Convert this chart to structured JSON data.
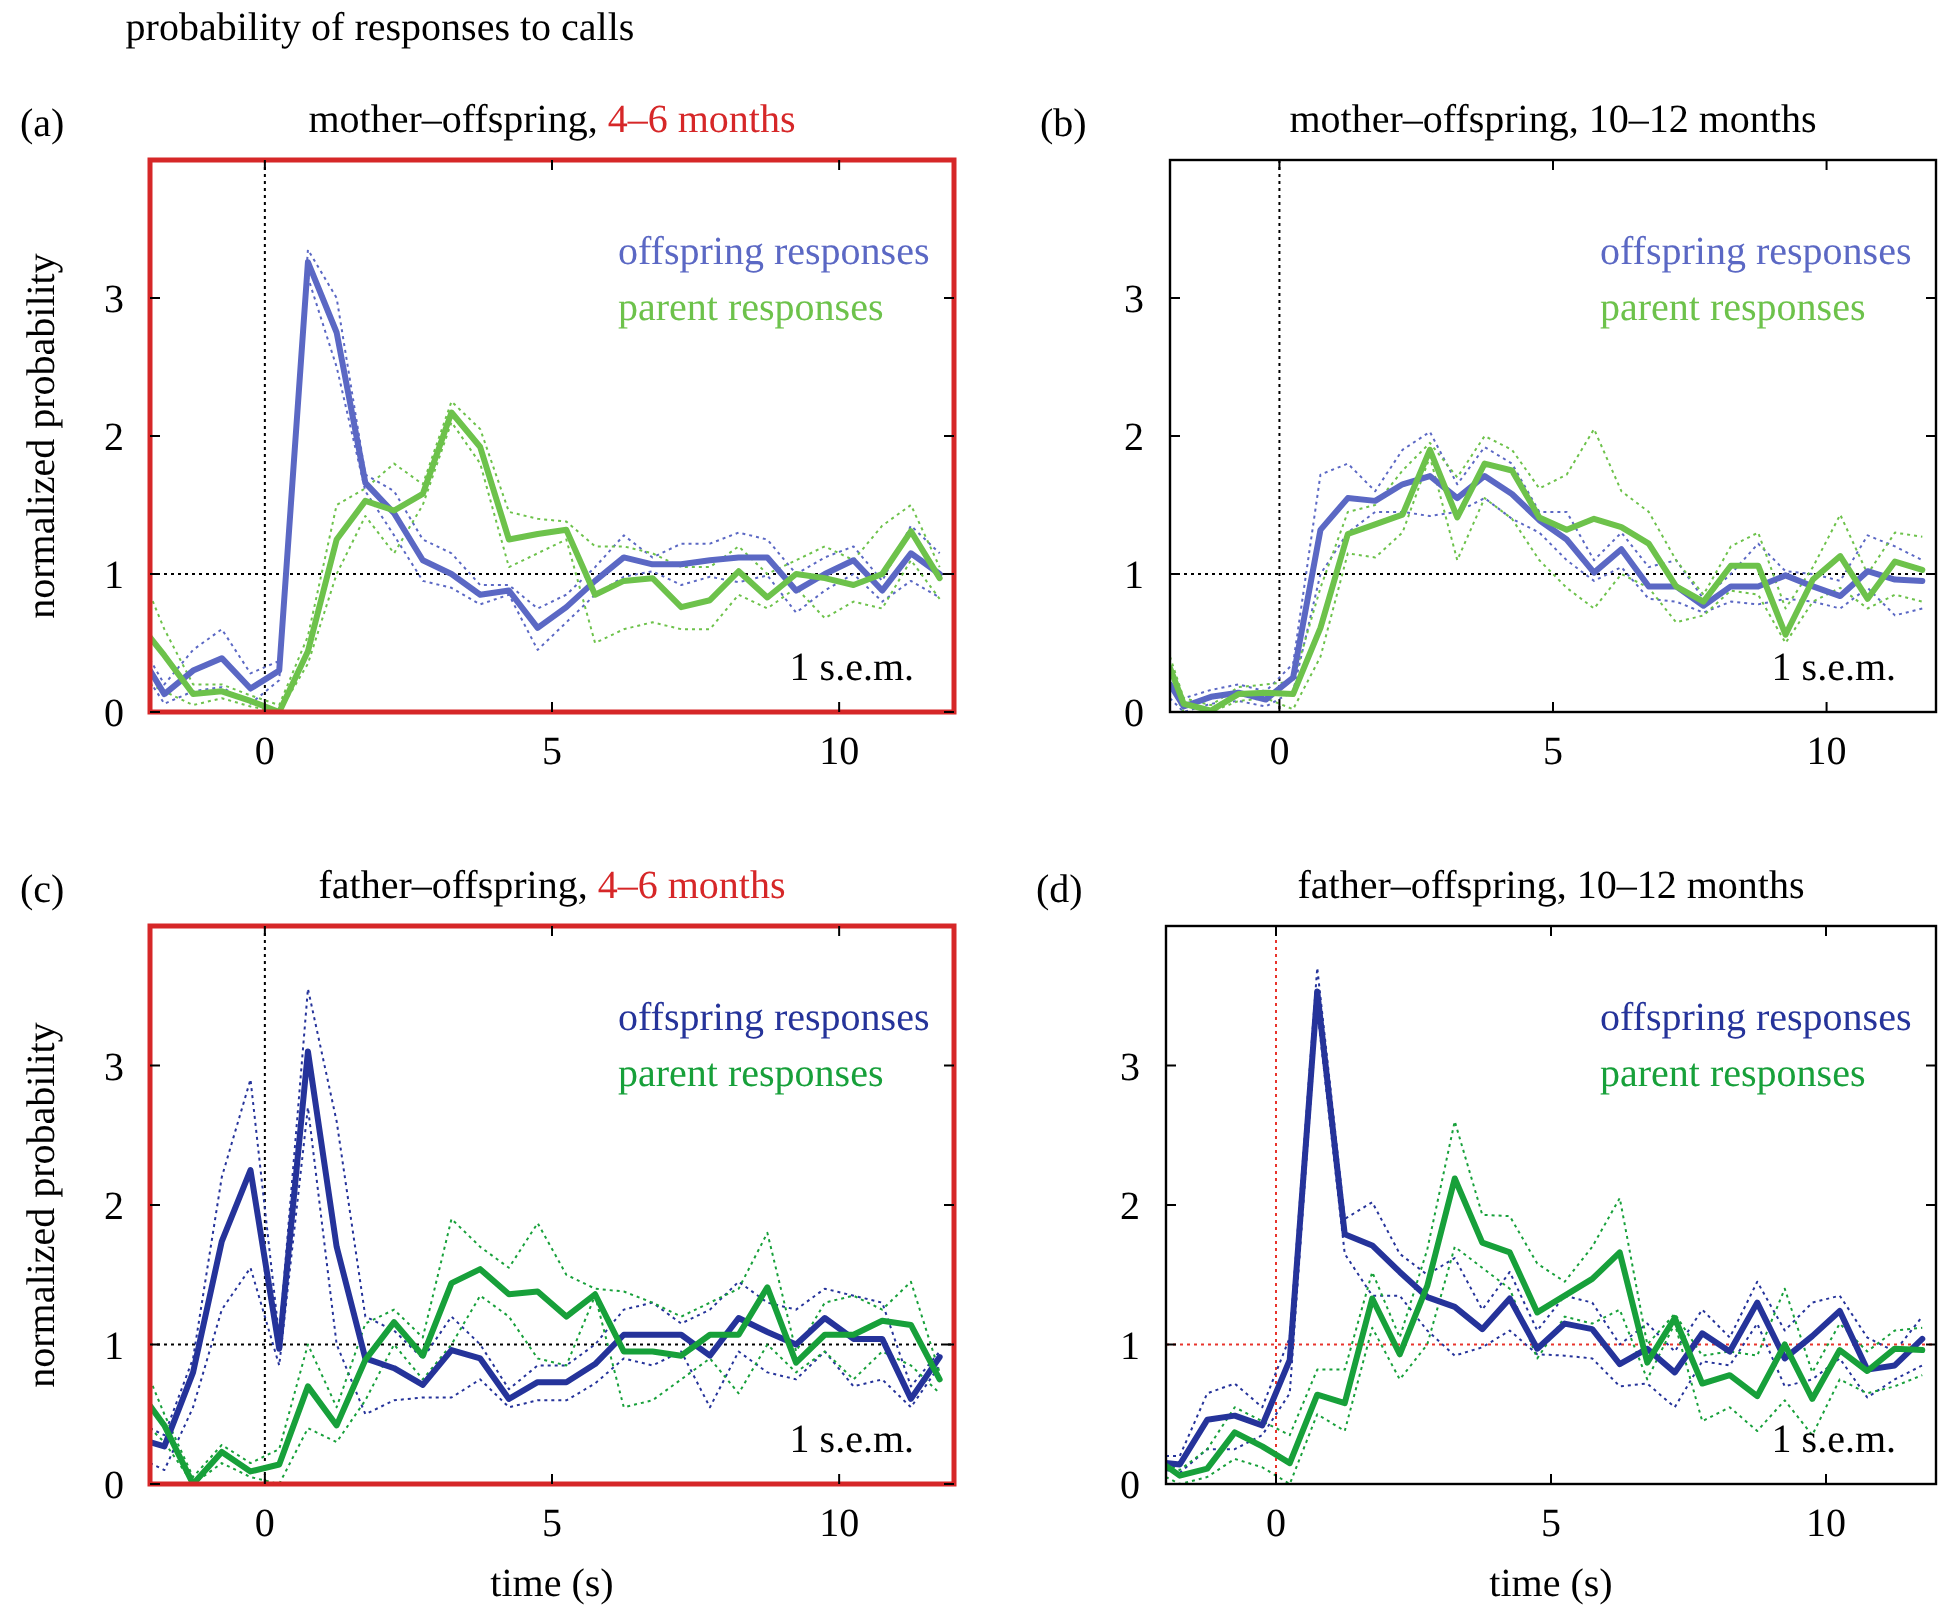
{
  "chart_data": [
    {
      "type": "line",
      "title": "probability of responses to calls",
      "subtitle": "mother–offspring, 4–6 months",
      "ylabel": "normalized probability",
      "annotations": [
        "(a)",
        "1 s.e.m."
      ],
      "legend": "top right",
      "xlim": [
        -2,
        12
      ],
      "ylim": [
        0,
        4
      ],
      "xticks": [
        0,
        5,
        10
      ],
      "yticks": [
        0,
        1,
        2,
        3
      ],
      "x": [
        -2,
        -1.75,
        -1.25,
        -0.75,
        -0.25,
        0.25,
        0.75,
        1.25,
        1.75,
        2.25,
        2.75,
        3.25,
        3.75,
        4.25,
        4.75,
        5.25,
        5.75,
        6.25,
        6.75,
        7.25,
        7.75,
        8.25,
        8.75,
        9.25,
        9.75,
        10.25,
        10.75,
        11.25,
        11.75
      ],
      "ref_lines": [
        {
          "axis": "x",
          "value": 0,
          "color": "#000000",
          "line_style": "dotted"
        },
        {
          "axis": "y",
          "value": 1,
          "color": "#000000",
          "line_style": "dotted"
        }
      ],
      "series": [
        {
          "color": "#5b68c4",
          "line_style": "dotted",
          "values": [
            0.22,
            0.06,
            0.15,
            0.18,
            0.06,
            0.23,
            3.15,
            2.5,
            1.6,
            1.28,
            0.95,
            0.9,
            0.78,
            0.85,
            0.45,
            0.65,
            0.85,
            0.98,
            1.02,
            0.92,
            0.98,
            0.94,
            0.99,
            0.72,
            0.88,
            1.0,
            0.8,
            0.95,
            0.83
          ]
        },
        {
          "color": "#5b68c4",
          "line_style": "dotted",
          "values": [
            0.38,
            0.2,
            0.45,
            0.6,
            0.28,
            0.37,
            3.35,
            3.0,
            1.72,
            1.6,
            1.25,
            1.15,
            0.92,
            0.92,
            0.75,
            0.85,
            1.05,
            1.28,
            1.12,
            1.22,
            1.22,
            1.3,
            1.25,
            1.0,
            1.12,
            1.2,
            0.95,
            1.35,
            1.15
          ]
        },
        {
          "color": "#6dc24b",
          "line_style": "dotted",
          "values": [
            0.2,
            0.15,
            0.05,
            0.1,
            0.04,
            0.0,
            0.35,
            1.0,
            1.42,
            1.15,
            1.5,
            2.1,
            1.8,
            1.05,
            1.15,
            1.25,
            0.5,
            0.6,
            0.65,
            0.6,
            0.6,
            0.85,
            0.75,
            0.9,
            0.68,
            0.8,
            0.75,
            1.1,
            0.82
          ]
        },
        {
          "color": "#6dc24b",
          "line_style": "dotted",
          "values": [
            0.85,
            0.6,
            0.2,
            0.2,
            0.12,
            0.05,
            0.55,
            1.5,
            1.62,
            1.8,
            1.65,
            2.25,
            2.05,
            1.45,
            1.4,
            1.38,
            1.2,
            1.2,
            1.15,
            1.05,
            1.05,
            1.2,
            1.0,
            1.1,
            1.2,
            1.1,
            1.35,
            1.5,
            1.05
          ]
        },
        {
          "name": "offspring responses",
          "color": "#5b68c4",
          "line_style": "solid",
          "values": [
            0.3,
            0.13,
            0.3,
            0.39,
            0.17,
            0.3,
            3.26,
            2.75,
            1.66,
            1.44,
            1.1,
            1.0,
            0.85,
            0.88,
            0.61,
            0.76,
            0.95,
            1.12,
            1.07,
            1.07,
            1.1,
            1.12,
            1.12,
            0.88,
            1.0,
            1.1,
            0.88,
            1.15,
            1.0
          ]
        },
        {
          "name": "parent responses",
          "color": "#6dc24b",
          "line_style": "solid",
          "values": [
            0.54,
            0.41,
            0.13,
            0.15,
            0.08,
            0.0,
            0.44,
            1.25,
            1.53,
            1.46,
            1.58,
            2.17,
            1.92,
            1.25,
            1.29,
            1.32,
            0.85,
            0.95,
            0.97,
            0.76,
            0.81,
            1.02,
            0.83,
            1.0,
            0.97,
            0.92,
            1.0,
            1.31,
            0.97
          ]
        }
      ]
    },
    {
      "type": "line",
      "title": "mother–offspring, 10–12 months",
      "annotations": [
        "(b)",
        "1 s.e.m."
      ],
      "legend": "top right",
      "xlim": [
        -2,
        12
      ],
      "ylim": [
        0,
        4
      ],
      "xticks": [
        0,
        5,
        10
      ],
      "yticks": [
        0,
        1,
        2,
        3
      ],
      "x": [
        -2,
        -1.75,
        -1.25,
        -0.75,
        -0.25,
        0.25,
        0.75,
        1.25,
        1.75,
        2.25,
        2.75,
        3.25,
        3.75,
        4.25,
        4.75,
        5.25,
        5.75,
        6.25,
        6.75,
        7.25,
        7.75,
        8.25,
        8.75,
        9.25,
        9.75,
        10.25,
        10.75,
        11.25,
        11.75
      ],
      "ref_lines": [
        {
          "axis": "x",
          "value": 0,
          "color": "#000000",
          "line_style": "dotted"
        },
        {
          "axis": "y",
          "value": 1,
          "color": "#000000",
          "line_style": "dotted"
        }
      ],
      "series": [
        {
          "color": "#5b68c4",
          "line_style": "dotted",
          "values": [
            0.1,
            0.0,
            0.06,
            0.08,
            0.04,
            0.15,
            1.0,
            1.3,
            1.45,
            1.45,
            1.42,
            1.45,
            1.55,
            1.4,
            1.3,
            1.1,
            0.95,
            1.05,
            0.82,
            0.8,
            0.72,
            0.8,
            0.78,
            0.82,
            0.8,
            0.75,
            0.9,
            0.7,
            0.75
          ]
        },
        {
          "color": "#5b68c4",
          "line_style": "dotted",
          "values": [
            0.3,
            0.1,
            0.16,
            0.2,
            0.15,
            0.35,
            1.72,
            1.8,
            1.6,
            1.9,
            2.03,
            1.65,
            1.92,
            1.8,
            1.45,
            1.45,
            1.1,
            1.3,
            1.05,
            1.1,
            0.82,
            1.0,
            1.22,
            1.02,
            1.0,
            0.95,
            1.28,
            1.2,
            1.1
          ]
        },
        {
          "color": "#6dc24b",
          "line_style": "dotted",
          "values": [
            0.2,
            0.0,
            0.0,
            0.08,
            0.1,
            0.02,
            0.4,
            1.15,
            1.12,
            1.3,
            1.85,
            1.1,
            1.55,
            1.4,
            1.1,
            0.9,
            0.75,
            1.0,
            0.9,
            0.65,
            0.7,
            0.88,
            0.85,
            0.5,
            0.8,
            0.9,
            0.75,
            0.85,
            0.8
          ]
        },
        {
          "color": "#6dc24b",
          "line_style": "dotted",
          "values": [
            0.4,
            0.1,
            0.05,
            0.18,
            0.2,
            0.22,
            0.9,
            1.45,
            1.5,
            1.75,
            1.95,
            1.7,
            2.0,
            1.9,
            1.62,
            1.72,
            2.05,
            1.6,
            1.45,
            1.1,
            0.85,
            1.2,
            1.3,
            0.75,
            1.05,
            1.43,
            1.0,
            1.3,
            1.27
          ]
        },
        {
          "name": "offspring responses",
          "color": "#5b68c4",
          "line_style": "solid",
          "values": [
            0.2,
            0.04,
            0.11,
            0.14,
            0.09,
            0.25,
            1.32,
            1.55,
            1.53,
            1.65,
            1.71,
            1.55,
            1.71,
            1.58,
            1.39,
            1.25,
            1.01,
            1.18,
            0.91,
            0.91,
            0.77,
            0.91,
            0.91,
            0.99,
            0.91,
            0.84,
            1.02,
            0.96,
            0.95
          ]
        },
        {
          "name": "parent responses",
          "color": "#6dc24b",
          "line_style": "solid",
          "values": [
            0.32,
            0.06,
            0.01,
            0.13,
            0.14,
            0.13,
            0.61,
            1.29,
            1.36,
            1.43,
            1.9,
            1.41,
            1.8,
            1.75,
            1.41,
            1.32,
            1.4,
            1.34,
            1.22,
            0.91,
            0.8,
            1.06,
            1.06,
            0.56,
            0.96,
            1.13,
            0.82,
            1.09,
            1.03
          ]
        }
      ]
    },
    {
      "type": "line",
      "title": "father–offspring, 4–6 months",
      "xlabel": "time (s)",
      "ylabel": "normalized probability",
      "annotations": [
        "(c)",
        "1 s.e.m."
      ],
      "legend": "top right",
      "xlim": [
        -2,
        12
      ],
      "ylim": [
        0,
        4
      ],
      "xticks": [
        0,
        5,
        10
      ],
      "yticks": [
        0,
        1,
        2,
        3
      ],
      "x": [
        -2,
        -1.75,
        -1.25,
        -0.75,
        -0.25,
        0.25,
        0.75,
        1.25,
        1.75,
        2.25,
        2.75,
        3.25,
        3.75,
        4.25,
        4.75,
        5.25,
        5.75,
        6.25,
        6.75,
        7.25,
        7.75,
        8.25,
        8.75,
        9.25,
        9.75,
        10.25,
        10.75,
        11.25,
        11.75
      ],
      "ref_lines": [
        {
          "axis": "x",
          "value": 0,
          "color": "#000000",
          "line_style": "dotted"
        },
        {
          "axis": "y",
          "value": 1,
          "color": "#000000",
          "line_style": "dotted"
        }
      ],
      "series": [
        {
          "color": "#25339a",
          "line_style": "dotted",
          "values": [
            0.15,
            0.1,
            0.55,
            1.25,
            1.55,
            0.85,
            2.7,
            1.0,
            0.5,
            0.6,
            0.62,
            0.62,
            0.75,
            0.55,
            0.6,
            0.6,
            0.72,
            0.9,
            0.85,
            0.95,
            0.55,
            0.95,
            0.8,
            0.75,
            0.95,
            0.7,
            0.75,
            0.55,
            0.85
          ]
        },
        {
          "color": "#25339a",
          "line_style": "dotted",
          "values": [
            0.4,
            0.35,
            0.9,
            2.2,
            2.9,
            1.05,
            3.55,
            2.6,
            1.2,
            1.1,
            0.9,
            1.2,
            1.0,
            0.68,
            0.85,
            0.85,
            1.0,
            1.25,
            1.3,
            1.15,
            1.25,
            1.45,
            1.3,
            1.25,
            1.4,
            1.35,
            1.3,
            0.7,
            0.95
          ]
        },
        {
          "color": "#17a03a",
          "line_style": "dotted",
          "values": [
            0.4,
            0.3,
            0.0,
            0.15,
            0.05,
            0.0,
            0.4,
            0.3,
            0.6,
            1.0,
            0.75,
            1.0,
            1.35,
            1.2,
            0.9,
            0.85,
            1.35,
            0.55,
            0.6,
            0.75,
            0.9,
            0.65,
            1.0,
            0.8,
            0.95,
            0.75,
            0.95,
            0.85,
            0.65
          ]
        },
        {
          "color": "#17a03a",
          "line_style": "dotted",
          "values": [
            0.75,
            0.5,
            0.05,
            0.28,
            0.15,
            0.25,
            1.0,
            0.55,
            1.15,
            1.25,
            1.05,
            1.9,
            1.7,
            1.55,
            1.87,
            1.5,
            1.4,
            1.38,
            1.3,
            1.2,
            1.3,
            1.4,
            1.8,
            0.95,
            1.3,
            1.35,
            1.25,
            1.45,
            0.8
          ]
        },
        {
          "name": "offspring responses",
          "color": "#25339a",
          "line_style": "solid",
          "values": [
            0.3,
            0.27,
            0.8,
            1.74,
            2.25,
            0.97,
            3.1,
            1.7,
            0.9,
            0.83,
            0.71,
            0.96,
            0.9,
            0.61,
            0.73,
            0.73,
            0.86,
            1.07,
            1.07,
            1.07,
            0.92,
            1.19,
            1.09,
            1.0,
            1.19,
            1.04,
            1.04,
            0.61,
            0.91
          ]
        },
        {
          "name": "parent responses",
          "color": "#17a03a",
          "line_style": "solid",
          "values": [
            0.56,
            0.42,
            0.0,
            0.23,
            0.09,
            0.14,
            0.7,
            0.42,
            0.89,
            1.16,
            0.92,
            1.44,
            1.54,
            1.36,
            1.38,
            1.2,
            1.36,
            0.95,
            0.95,
            0.92,
            1.07,
            1.07,
            1.41,
            0.87,
            1.07,
            1.07,
            1.17,
            1.14,
            0.75
          ]
        }
      ]
    },
    {
      "type": "line",
      "title": "father–offspring, 10–12 months",
      "xlabel": "time (s)",
      "annotations": [
        "(d)",
        "1 s.e.m."
      ],
      "legend": "top right",
      "xlim": [
        -2,
        12
      ],
      "ylim": [
        0,
        4
      ],
      "xticks": [
        0,
        5,
        10
      ],
      "yticks": [
        0,
        1,
        2,
        3
      ],
      "x": [
        -2,
        -1.75,
        -1.25,
        -0.75,
        -0.25,
        0.25,
        0.75,
        1.25,
        1.75,
        2.25,
        2.75,
        3.25,
        3.75,
        4.25,
        4.75,
        5.25,
        5.75,
        6.25,
        6.75,
        7.25,
        7.75,
        8.25,
        8.75,
        9.25,
        9.75,
        10.25,
        10.75,
        11.25,
        11.75
      ],
      "ref_lines": [
        {
          "axis": "x",
          "value": 0,
          "color": "#e8342c",
          "line_style": "dotted"
        },
        {
          "axis": "y",
          "value": 1,
          "color": "#e8342c",
          "line_style": "dotted"
        }
      ],
      "series": [
        {
          "color": "#25339a",
          "line_style": "dotted",
          "values": [
            0.1,
            0.08,
            0.25,
            0.25,
            0.35,
            0.65,
            3.4,
            1.65,
            1.35,
            1.35,
            1.1,
            0.92,
            0.98,
            1.1,
            0.93,
            0.92,
            0.9,
            0.7,
            0.72,
            0.55,
            0.88,
            0.85,
            1.15,
            0.7,
            0.75,
            0.9,
            0.62,
            0.75,
            0.85
          ]
        },
        {
          "color": "#25339a",
          "line_style": "dotted",
          "values": [
            0.2,
            0.2,
            0.65,
            0.72,
            0.55,
            1.05,
            3.7,
            1.9,
            2.02,
            1.65,
            1.5,
            1.62,
            1.25,
            1.52,
            1.1,
            1.35,
            1.3,
            1.0,
            1.15,
            0.95,
            1.25,
            1.05,
            1.45,
            1.1,
            1.3,
            1.35,
            1.05,
            0.95,
            1.2
          ]
        },
        {
          "color": "#17a03a",
          "line_style": "dotted",
          "values": [
            0.05,
            0.0,
            0.05,
            0.18,
            0.12,
            0.0,
            0.5,
            0.38,
            1.12,
            0.75,
            1.0,
            1.7,
            1.55,
            1.4,
            0.9,
            1.2,
            1.15,
            1.25,
            0.75,
            1.15,
            0.45,
            0.55,
            0.38,
            0.6,
            0.35,
            0.75,
            0.65,
            0.7,
            0.78
          ]
        },
        {
          "color": "#17a03a",
          "line_style": "dotted",
          "values": [
            0.15,
            0.1,
            0.25,
            0.55,
            0.45,
            0.35,
            0.82,
            0.82,
            1.52,
            1.05,
            1.68,
            2.6,
            1.93,
            1.92,
            1.58,
            1.45,
            1.7,
            2.05,
            1.0,
            1.22,
            0.92,
            0.95,
            0.92,
            1.4,
            0.8,
            1.15,
            0.95,
            1.1,
            1.12
          ]
        },
        {
          "name": "offspring responses",
          "color": "#25339a",
          "line_style": "solid",
          "values": [
            0.15,
            0.14,
            0.46,
            0.49,
            0.42,
            0.89,
            3.53,
            1.79,
            1.71,
            1.52,
            1.34,
            1.27,
            1.11,
            1.33,
            0.97,
            1.15,
            1.11,
            0.86,
            0.97,
            0.8,
            1.08,
            0.95,
            1.3,
            0.9,
            1.06,
            1.24,
            0.82,
            0.85,
            1.04
          ]
        },
        {
          "name": "parent responses",
          "color": "#17a03a",
          "line_style": "solid",
          "values": [
            0.13,
            0.06,
            0.11,
            0.37,
            0.27,
            0.15,
            0.64,
            0.58,
            1.33,
            0.93,
            1.42,
            2.19,
            1.73,
            1.66,
            1.23,
            1.35,
            1.47,
            1.66,
            0.87,
            1.19,
            0.72,
            0.78,
            0.63,
            1.0,
            0.61,
            0.96,
            0.81,
            0.97,
            0.96
          ]
        }
      ]
    }
  ]
}
